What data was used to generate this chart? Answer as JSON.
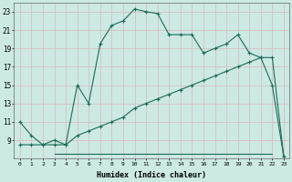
{
  "xlabel": "Humidex (Indice chaleur)",
  "bg_color": "#cce9e4",
  "grid_color": "#d9b8b8",
  "line_color": "#1a6b5a",
  "line1_x": [
    0,
    1,
    2,
    3,
    4,
    5,
    6,
    7,
    8,
    9,
    10,
    11,
    12,
    13,
    14,
    15,
    16,
    17,
    18,
    19,
    20,
    21,
    22,
    23
  ],
  "line1_y": [
    11,
    9.5,
    8.5,
    9.0,
    8.5,
    15,
    13,
    19.5,
    21.5,
    22.0,
    23.3,
    23.0,
    22.8,
    20.5,
    20.5,
    20.5,
    18.5,
    19.0,
    19.5,
    20.5,
    18.5,
    18.0,
    15.0,
    7.2
  ],
  "line2_x": [
    0,
    1,
    2,
    3,
    4,
    5,
    6,
    7,
    8,
    9,
    10,
    11,
    12,
    13,
    14,
    15,
    16,
    17,
    18,
    19,
    20,
    21,
    22,
    23
  ],
  "line2_y": [
    8.5,
    8.5,
    8.5,
    8.5,
    8.5,
    9.5,
    10.0,
    10.5,
    11.0,
    11.5,
    12.5,
    13.0,
    13.5,
    14.0,
    14.5,
    15.0,
    15.5,
    16.0,
    16.5,
    17.0,
    17.5,
    18.0,
    18.0,
    7.2
  ],
  "line3_x": [
    3,
    10,
    15,
    22
  ],
  "line3_y": [
    7.5,
    7.5,
    7.5,
    7.5
  ],
  "xlim": [
    -0.5,
    23.5
  ],
  "ylim": [
    7,
    24
  ],
  "yticks": [
    9,
    11,
    13,
    15,
    17,
    19,
    21,
    23
  ],
  "xticks": [
    0,
    1,
    2,
    3,
    4,
    5,
    6,
    7,
    8,
    9,
    10,
    11,
    12,
    13,
    14,
    15,
    16,
    17,
    18,
    19,
    20,
    21,
    22,
    23
  ]
}
